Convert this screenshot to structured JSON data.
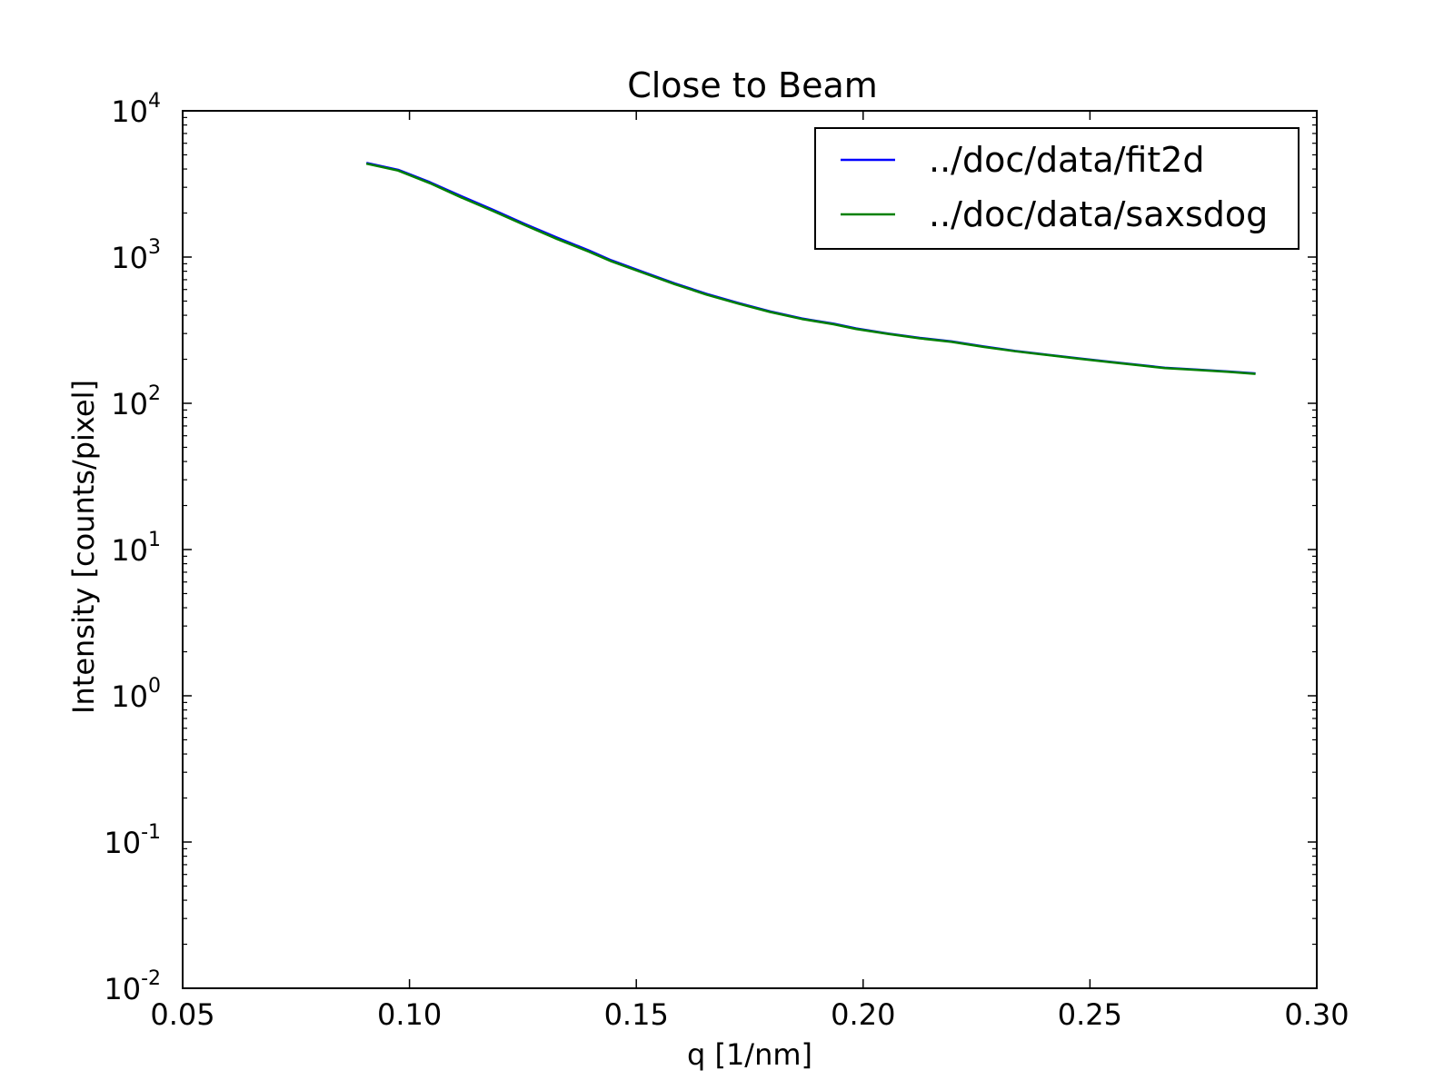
{
  "chart_data": {
    "type": "line",
    "title": "Close to Beam",
    "xlabel": "q [1/nm]",
    "ylabel": "Intensity [counts/pixel]",
    "xlim": [
      0.05,
      0.3
    ],
    "ylim": [
      0.01,
      10000
    ],
    "yscale": "log",
    "grid": false,
    "legend_position": "top-right",
    "x_ticks": [
      {
        "value": 0.05,
        "label": "0.05"
      },
      {
        "value": 0.1,
        "label": "0.10"
      },
      {
        "value": 0.15,
        "label": "0.15"
      },
      {
        "value": 0.2,
        "label": "0.20"
      },
      {
        "value": 0.25,
        "label": "0.25"
      },
      {
        "value": 0.3,
        "label": "0.30"
      }
    ],
    "y_ticks": [
      {
        "exp": -2,
        "base": "10",
        "power": "-2"
      },
      {
        "exp": -1,
        "base": "10",
        "power": "-1"
      },
      {
        "exp": 0,
        "base": "10",
        "power": "0"
      },
      {
        "exp": 1,
        "base": "10",
        "power": "1"
      },
      {
        "exp": 2,
        "base": "10",
        "power": "2"
      },
      {
        "exp": 3,
        "base": "10",
        "power": "3"
      },
      {
        "exp": 4,
        "base": "10",
        "power": "4"
      }
    ],
    "series": [
      {
        "name": "../doc/data/fit2d",
        "color": "#0000ff",
        "x": [
          0.0905,
          0.0975,
          0.1045,
          0.1115,
          0.1185,
          0.1255,
          0.1325,
          0.1395,
          0.1445,
          0.1515,
          0.1585,
          0.1655,
          0.1725,
          0.1795,
          0.1865,
          0.1935,
          0.1985,
          0.2055,
          0.2125,
          0.2195,
          0.2265,
          0.2335,
          0.2405,
          0.2475,
          0.2545,
          0.2615,
          0.2665,
          0.2735,
          0.2805,
          0.2865
        ],
        "y": [
          4400,
          3950,
          3250,
          2600,
          2100,
          1680,
          1360,
          1110,
          950,
          790,
          660,
          560,
          485,
          425,
          380,
          350,
          325,
          300,
          280,
          265,
          245,
          228,
          215,
          203,
          192,
          182,
          175,
          170,
          165,
          160
        ]
      },
      {
        "name": "../doc/data/saxsdog",
        "color": "#008000",
        "x": [
          0.0905,
          0.0975,
          0.1045,
          0.1115,
          0.1185,
          0.1255,
          0.1325,
          0.1395,
          0.1445,
          0.1515,
          0.1585,
          0.1655,
          0.1725,
          0.1795,
          0.1865,
          0.1935,
          0.1985,
          0.2055,
          0.2125,
          0.2195,
          0.2265,
          0.2335,
          0.2405,
          0.2475,
          0.2545,
          0.2615,
          0.2665,
          0.2735,
          0.2805,
          0.2865
        ],
        "y": [
          4350,
          3900,
          3200,
          2550,
          2060,
          1650,
          1330,
          1090,
          935,
          780,
          652,
          553,
          480,
          421,
          377,
          347,
          322,
          298,
          278,
          263,
          243,
          227,
          214,
          202,
          191,
          181,
          174,
          169,
          164,
          159
        ]
      }
    ]
  }
}
